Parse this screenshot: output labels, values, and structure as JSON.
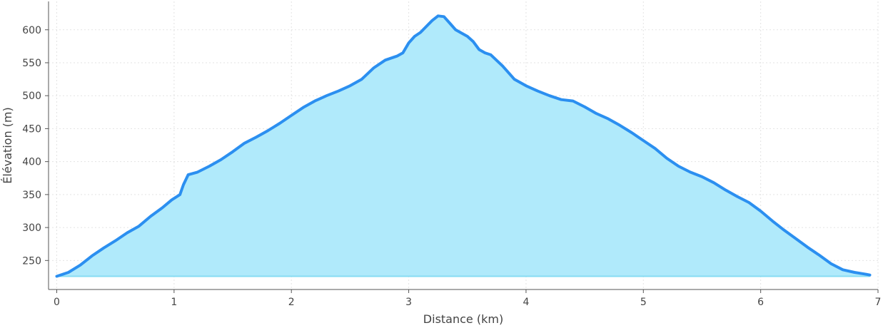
{
  "chart_data": {
    "type": "area",
    "title": "",
    "xlabel": "Distance (km)",
    "ylabel": "Élévation (m)",
    "xlim": [
      -0.07,
      7.0
    ],
    "ylim": [
      206,
      643
    ],
    "xticks": [
      0,
      1,
      2,
      3,
      4,
      5,
      6,
      7
    ],
    "yticks": [
      250,
      300,
      350,
      400,
      450,
      500,
      550,
      600
    ],
    "grid": true,
    "baseline": 226,
    "colors": {
      "line": "#2b8ff0",
      "fill": "#b0eafb",
      "baseline": "#86dcf3"
    },
    "x": [
      0,
      0.1,
      0.2,
      0.3,
      0.4,
      0.5,
      0.6,
      0.7,
      0.8,
      0.9,
      0.98,
      1.05,
      1.08,
      1.12,
      1.2,
      1.3,
      1.4,
      1.5,
      1.6,
      1.7,
      1.8,
      1.9,
      2.0,
      2.1,
      2.2,
      2.25,
      2.3,
      2.4,
      2.5,
      2.6,
      2.7,
      2.8,
      2.9,
      2.95,
      3.0,
      3.05,
      3.1,
      3.15,
      3.2,
      3.25,
      3.3,
      3.35,
      3.4,
      3.45,
      3.5,
      3.55,
      3.6,
      3.65,
      3.7,
      3.8,
      3.9,
      4.0,
      4.1,
      4.2,
      4.3,
      4.4,
      4.5,
      4.6,
      4.7,
      4.8,
      4.9,
      5.0,
      5.1,
      5.2,
      5.3,
      5.4,
      5.5,
      5.6,
      5.7,
      5.8,
      5.9,
      6.0,
      6.1,
      6.2,
      6.3,
      6.4,
      6.5,
      6.6,
      6.7,
      6.8,
      6.9,
      6.93
    ],
    "y": [
      226,
      232,
      243,
      257,
      269,
      280,
      292,
      302,
      317,
      330,
      342,
      350,
      365,
      380,
      384,
      393,
      403,
      415,
      428,
      437,
      447,
      458,
      470,
      482,
      492,
      496,
      500,
      507,
      515,
      525,
      542,
      554,
      560,
      565,
      580,
      590,
      596,
      605,
      614,
      621,
      620,
      610,
      600,
      595,
      590,
      582,
      570,
      565,
      562,
      545,
      525,
      515,
      507,
      500,
      494,
      492,
      483,
      473,
      465,
      455,
      444,
      432,
      420,
      405,
      393,
      384,
      377,
      368,
      357,
      347,
      338,
      325,
      310,
      296,
      283,
      270,
      258,
      245,
      236,
      232,
      229,
      228
    ]
  }
}
